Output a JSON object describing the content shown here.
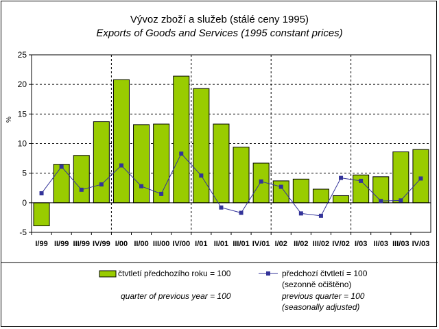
{
  "chart_data": {
    "type": "bar",
    "title": "Vývoz zboží a služeb (stálé ceny 1995)",
    "subtitle": "Exports of Goods and Services (1995 constant prices)",
    "ylabel": "%",
    "xlabel": "",
    "ylim": [
      -5,
      25
    ],
    "yticks": [
      -5,
      0,
      5,
      10,
      15,
      20,
      25
    ],
    "grid": true,
    "legend_placement": "bottom",
    "categories": [
      "I/99",
      "II/99",
      "III/99",
      "IV/99",
      "I/00",
      "II/00",
      "III/00",
      "IV/00",
      "I/01",
      "II/01",
      "III/01",
      "IV/01",
      "I/02",
      "II/02",
      "III/02",
      "IV/02",
      "I/03",
      "II/03",
      "III/03",
      "IV/03"
    ],
    "series": [
      {
        "name": "čtvtletí předchozího roku = 100",
        "name_en": "quarter of previous year =  100",
        "kind": "bar",
        "color": "#99cc00",
        "values": [
          -3.9,
          6.5,
          8.0,
          13.7,
          20.8,
          13.2,
          13.3,
          21.4,
          19.3,
          13.3,
          9.4,
          6.7,
          3.7,
          4.0,
          2.3,
          1.2,
          4.7,
          4.4,
          8.6,
          9.0
        ]
      },
      {
        "name": "předchozí čtvtletí = 100",
        "name_2": "(sezonně očištěno)",
        "name_en": "previous quarter = 100",
        "name_en_2": "(seasonally adjusted)",
        "kind": "line",
        "color": "#333399",
        "values": [
          1.6,
          6.1,
          2.2,
          3.1,
          6.3,
          2.8,
          1.5,
          8.3,
          4.6,
          -0.8,
          -1.7,
          3.6,
          2.7,
          -1.8,
          -2.2,
          4.2,
          3.7,
          0.3,
          0.4,
          4.1
        ]
      }
    ]
  }
}
